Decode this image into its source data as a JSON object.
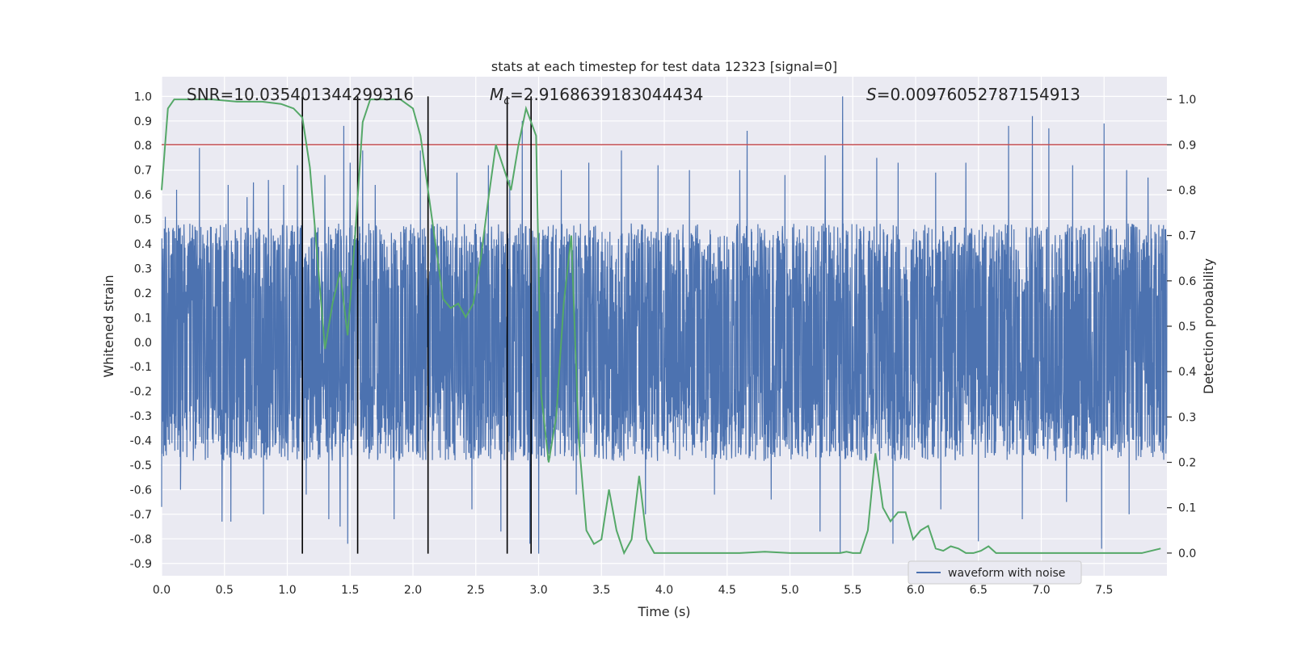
{
  "chart_data": {
    "type": "line",
    "title": "stats at each timestep for test data 12323 [signal=0]",
    "xlabel": "Time (s)",
    "ylabel": "Whitened strain",
    "ylabel_right": "Detection probability",
    "xlim": [
      0,
      8
    ],
    "ylim": [
      -0.95,
      1.08
    ],
    "ylim_right": [
      -0.05,
      1.05
    ],
    "x_ticks": [
      0.0,
      0.5,
      1.0,
      1.5,
      2.0,
      2.5,
      3.0,
      3.5,
      4.0,
      4.5,
      5.0,
      5.5,
      6.0,
      6.5,
      7.0,
      7.5
    ],
    "x_tick_labels": [
      "0.0",
      "0.5",
      "1.0",
      "1.5",
      "2.0",
      "2.5",
      "3.0",
      "3.5",
      "4.0",
      "4.5",
      "5.0",
      "5.5",
      "6.0",
      "6.5",
      "7.0",
      "7.5"
    ],
    "y_ticks": [
      1.0,
      0.9,
      0.8,
      0.7,
      0.6,
      0.5,
      0.4,
      0.3,
      0.2,
      0.1,
      0.0,
      -0.1,
      -0.2,
      -0.3,
      -0.4,
      -0.5,
      -0.6,
      -0.7,
      -0.8,
      -0.9
    ],
    "y_tick_labels": [
      "1.0",
      "0.9",
      "0.8",
      "0.7",
      "0.6",
      "0.5",
      "0.4",
      "0.3",
      "0.2",
      "0.1",
      "0.0",
      "-0.1",
      "-0.2",
      "-0.3",
      "-0.4",
      "-0.5",
      "-0.6",
      "-0.7",
      "-0.8",
      "-0.9"
    ],
    "y_right_ticks": [
      1.0,
      0.9,
      0.8,
      0.7,
      0.6,
      0.5,
      0.4,
      0.3,
      0.2,
      0.1,
      0.0
    ],
    "y_right_tick_labels": [
      "1.0",
      "0.9",
      "0.8",
      "0.7",
      "0.6",
      "0.5",
      "0.4",
      "0.3",
      "0.2",
      "0.1",
      "0.0"
    ],
    "annotations": {
      "snr": "SNR=10.035401344299316",
      "mc_symbol": "M",
      "mc_subscript": "c",
      "mc_value": "=2.9168639183044434",
      "s_symbol": "S",
      "s_value": "=0.00976052787154913"
    },
    "threshold": 0.9,
    "vertical_lines": [
      1.12,
      1.56,
      2.12,
      2.75,
      2.94
    ],
    "vline_range": [
      -0.86,
      1.0
    ],
    "waveform": {
      "name": "waveform with noise",
      "n_points": 4096,
      "seed": 12323,
      "baseline_upper": 0.42,
      "baseline_lower": -0.42,
      "spikes_up": [
        [
          0.03,
          0.51
        ],
        [
          0.12,
          0.62
        ],
        [
          0.3,
          0.79
        ],
        [
          0.48,
          0.63
        ],
        [
          0.53,
          0.64
        ],
        [
          0.68,
          0.59
        ],
        [
          0.73,
          0.65
        ],
        [
          0.85,
          0.66
        ],
        [
          0.97,
          0.64
        ],
        [
          1.08,
          0.72
        ],
        [
          1.3,
          0.68
        ],
        [
          1.45,
          0.88
        ],
        [
          1.5,
          0.73
        ],
        [
          1.6,
          0.78
        ],
        [
          1.7,
          0.64
        ],
        [
          2.06,
          0.78
        ],
        [
          2.35,
          0.69
        ],
        [
          2.6,
          0.72
        ],
        [
          2.77,
          0.66
        ],
        [
          2.87,
          0.9
        ],
        [
          3.18,
          0.7
        ],
        [
          3.4,
          0.73
        ],
        [
          3.66,
          0.78
        ],
        [
          3.95,
          0.72
        ],
        [
          4.2,
          0.7
        ],
        [
          4.6,
          0.7
        ],
        [
          4.66,
          0.86
        ],
        [
          4.96,
          0.68
        ],
        [
          5.28,
          0.76
        ],
        [
          5.42,
          1.0
        ],
        [
          5.69,
          0.75
        ],
        [
          5.86,
          0.73
        ],
        [
          6.16,
          0.69
        ],
        [
          6.4,
          0.73
        ],
        [
          6.74,
          0.88
        ],
        [
          6.93,
          0.92
        ],
        [
          7.06,
          0.87
        ],
        [
          7.25,
          0.72
        ],
        [
          7.5,
          0.89
        ],
        [
          7.68,
          0.7
        ],
        [
          7.85,
          0.67
        ]
      ],
      "spikes_down": [
        [
          0.0,
          -0.67
        ],
        [
          0.15,
          -0.6
        ],
        [
          0.48,
          -0.73
        ],
        [
          0.55,
          -0.73
        ],
        [
          0.81,
          -0.7
        ],
        [
          1.15,
          -0.62
        ],
        [
          1.33,
          -0.72
        ],
        [
          1.42,
          -0.75
        ],
        [
          1.48,
          -0.82
        ],
        [
          1.85,
          -0.72
        ],
        [
          2.47,
          -0.68
        ],
        [
          2.7,
          -0.77
        ],
        [
          2.93,
          -0.82
        ],
        [
          3.0,
          -0.86
        ],
        [
          3.3,
          -0.62
        ],
        [
          3.85,
          -0.7
        ],
        [
          4.4,
          -0.62
        ],
        [
          4.85,
          -0.64
        ],
        [
          5.24,
          -0.77
        ],
        [
          5.4,
          -0.86
        ],
        [
          5.82,
          -0.82
        ],
        [
          6.2,
          -0.68
        ],
        [
          6.5,
          -0.81
        ],
        [
          6.85,
          -0.72
        ],
        [
          7.2,
          -0.65
        ],
        [
          7.48,
          -0.84
        ],
        [
          7.7,
          -0.7
        ]
      ]
    },
    "probability": {
      "name": "detection probability",
      "x": [
        0.0,
        0.05,
        0.1,
        0.2,
        0.4,
        0.6,
        0.8,
        0.95,
        1.05,
        1.12,
        1.18,
        1.24,
        1.3,
        1.36,
        1.42,
        1.48,
        1.54,
        1.6,
        1.66,
        1.72,
        1.8,
        1.9,
        2.0,
        2.06,
        2.12,
        2.18,
        2.24,
        2.3,
        2.36,
        2.42,
        2.48,
        2.54,
        2.6,
        2.66,
        2.72,
        2.78,
        2.84,
        2.9,
        2.94,
        2.98,
        3.02,
        3.08,
        3.14,
        3.2,
        3.26,
        3.32,
        3.38,
        3.44,
        3.5,
        3.56,
        3.62,
        3.68,
        3.74,
        3.8,
        3.86,
        3.92,
        4.0,
        4.1,
        4.3,
        4.5,
        4.6,
        4.8,
        5.0,
        5.2,
        5.4,
        5.45,
        5.5,
        5.56,
        5.62,
        5.68,
        5.74,
        5.8,
        5.86,
        5.92,
        5.98,
        6.04,
        6.1,
        6.16,
        6.22,
        6.28,
        6.34,
        6.4,
        6.46,
        6.52,
        6.58,
        6.64,
        6.7,
        6.8,
        7.0,
        7.2,
        7.4,
        7.6,
        7.8,
        7.95
      ],
      "y": [
        0.8,
        0.98,
        1.0,
        1.0,
        1.0,
        0.995,
        0.995,
        0.99,
        0.98,
        0.96,
        0.85,
        0.65,
        0.45,
        0.55,
        0.62,
        0.48,
        0.7,
        0.95,
        1.0,
        1.0,
        1.0,
        1.0,
        0.98,
        0.92,
        0.8,
        0.68,
        0.56,
        0.54,
        0.55,
        0.52,
        0.55,
        0.65,
        0.78,
        0.9,
        0.85,
        0.8,
        0.9,
        0.98,
        0.95,
        0.92,
        0.35,
        0.2,
        0.3,
        0.55,
        0.7,
        0.25,
        0.05,
        0.02,
        0.03,
        0.14,
        0.05,
        0.0,
        0.03,
        0.17,
        0.03,
        0.0,
        0.0,
        0.0,
        0.0,
        0.0,
        0.0,
        0.003,
        0.0,
        0.0,
        0.0,
        0.003,
        0.0,
        0.0,
        0.05,
        0.22,
        0.1,
        0.07,
        0.09,
        0.09,
        0.03,
        0.05,
        0.06,
        0.01,
        0.005,
        0.015,
        0.01,
        0.0,
        0.0,
        0.005,
        0.015,
        0.0,
        0.0,
        0.0,
        0.0,
        0.0,
        0.0,
        0.0,
        0.0,
        0.01
      ]
    },
    "legend": [
      "waveform with noise"
    ],
    "legend_position": "bottom-right",
    "colors": {
      "waveform": "#4c72b0",
      "probability": "#55a868",
      "threshold": "#c44e52",
      "vlines": "#000000",
      "background": "#eaeaf2",
      "grid": "#ffffff"
    },
    "grid": true
  }
}
